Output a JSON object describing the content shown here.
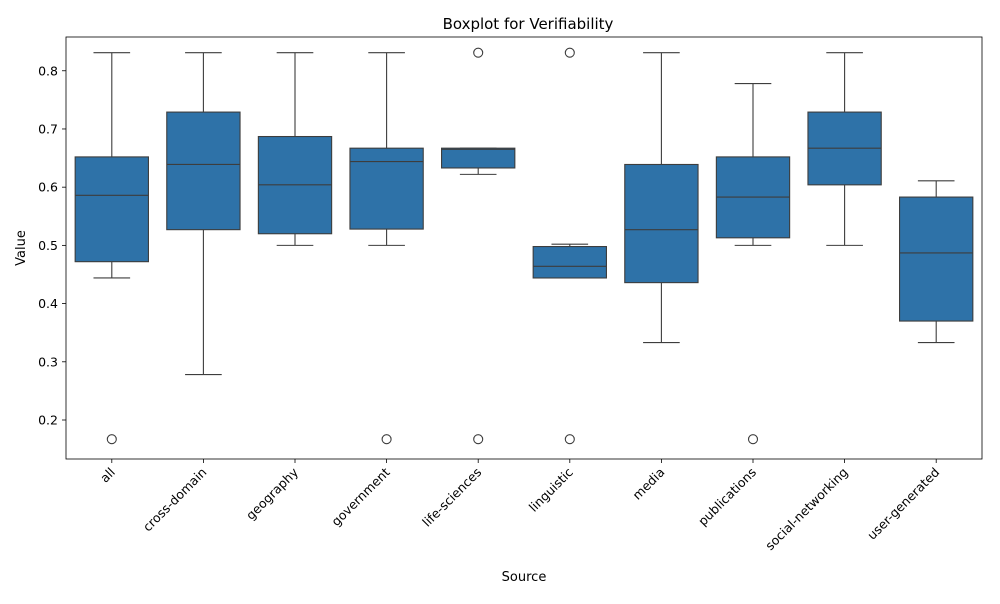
{
  "chart_data": {
    "type": "boxplot",
    "title": "Boxplot for Verifiability",
    "xlabel": "Source",
    "ylabel": "Value",
    "ylim": [
      0.133,
      0.858
    ],
    "yticks": [
      "0.2",
      "0.3",
      "0.4",
      "0.5",
      "0.6",
      "0.7",
      "0.8"
    ],
    "ytick_values": [
      0.2,
      0.3,
      0.4,
      0.5,
      0.6,
      0.7,
      0.8
    ],
    "grid": false,
    "box_color": "#2e72a8",
    "line_color": "#3d3d3d",
    "categories": [
      "all",
      "cross-domain",
      "geography",
      "government",
      "life-sciences",
      "linguistic",
      "media",
      "publications",
      "social-networking",
      "user-generated"
    ],
    "boxes": [
      {
        "whisker_low": 0.444,
        "q1": 0.472,
        "median": 0.586,
        "q3": 0.652,
        "whisker_high": 0.831,
        "outliers": [
          0.167
        ]
      },
      {
        "whisker_low": 0.278,
        "q1": 0.527,
        "median": 0.639,
        "q3": 0.729,
        "whisker_high": 0.831,
        "outliers": []
      },
      {
        "whisker_low": 0.5,
        "q1": 0.52,
        "median": 0.604,
        "q3": 0.687,
        "whisker_high": 0.831,
        "outliers": []
      },
      {
        "whisker_low": 0.5,
        "q1": 0.528,
        "median": 0.644,
        "q3": 0.667,
        "whisker_high": 0.831,
        "outliers": [
          0.167
        ]
      },
      {
        "whisker_low": 0.622,
        "q1": 0.633,
        "median": 0.665,
        "q3": 0.667,
        "whisker_high": 0.667,
        "outliers": [
          0.831,
          0.167
        ]
      },
      {
        "whisker_low": 0.444,
        "q1": 0.444,
        "median": 0.464,
        "q3": 0.498,
        "whisker_high": 0.502,
        "outliers": [
          0.831,
          0.167
        ]
      },
      {
        "whisker_low": 0.333,
        "q1": 0.436,
        "median": 0.527,
        "q3": 0.639,
        "whisker_high": 0.831,
        "outliers": []
      },
      {
        "whisker_low": 0.5,
        "q1": 0.513,
        "median": 0.583,
        "q3": 0.652,
        "whisker_high": 0.778,
        "outliers": [
          0.167
        ]
      },
      {
        "whisker_low": 0.5,
        "q1": 0.604,
        "median": 0.667,
        "q3": 0.729,
        "whisker_high": 0.831,
        "outliers": []
      },
      {
        "whisker_low": 0.333,
        "q1": 0.37,
        "median": 0.487,
        "q3": 0.583,
        "whisker_high": 0.611,
        "outliers": []
      }
    ]
  }
}
